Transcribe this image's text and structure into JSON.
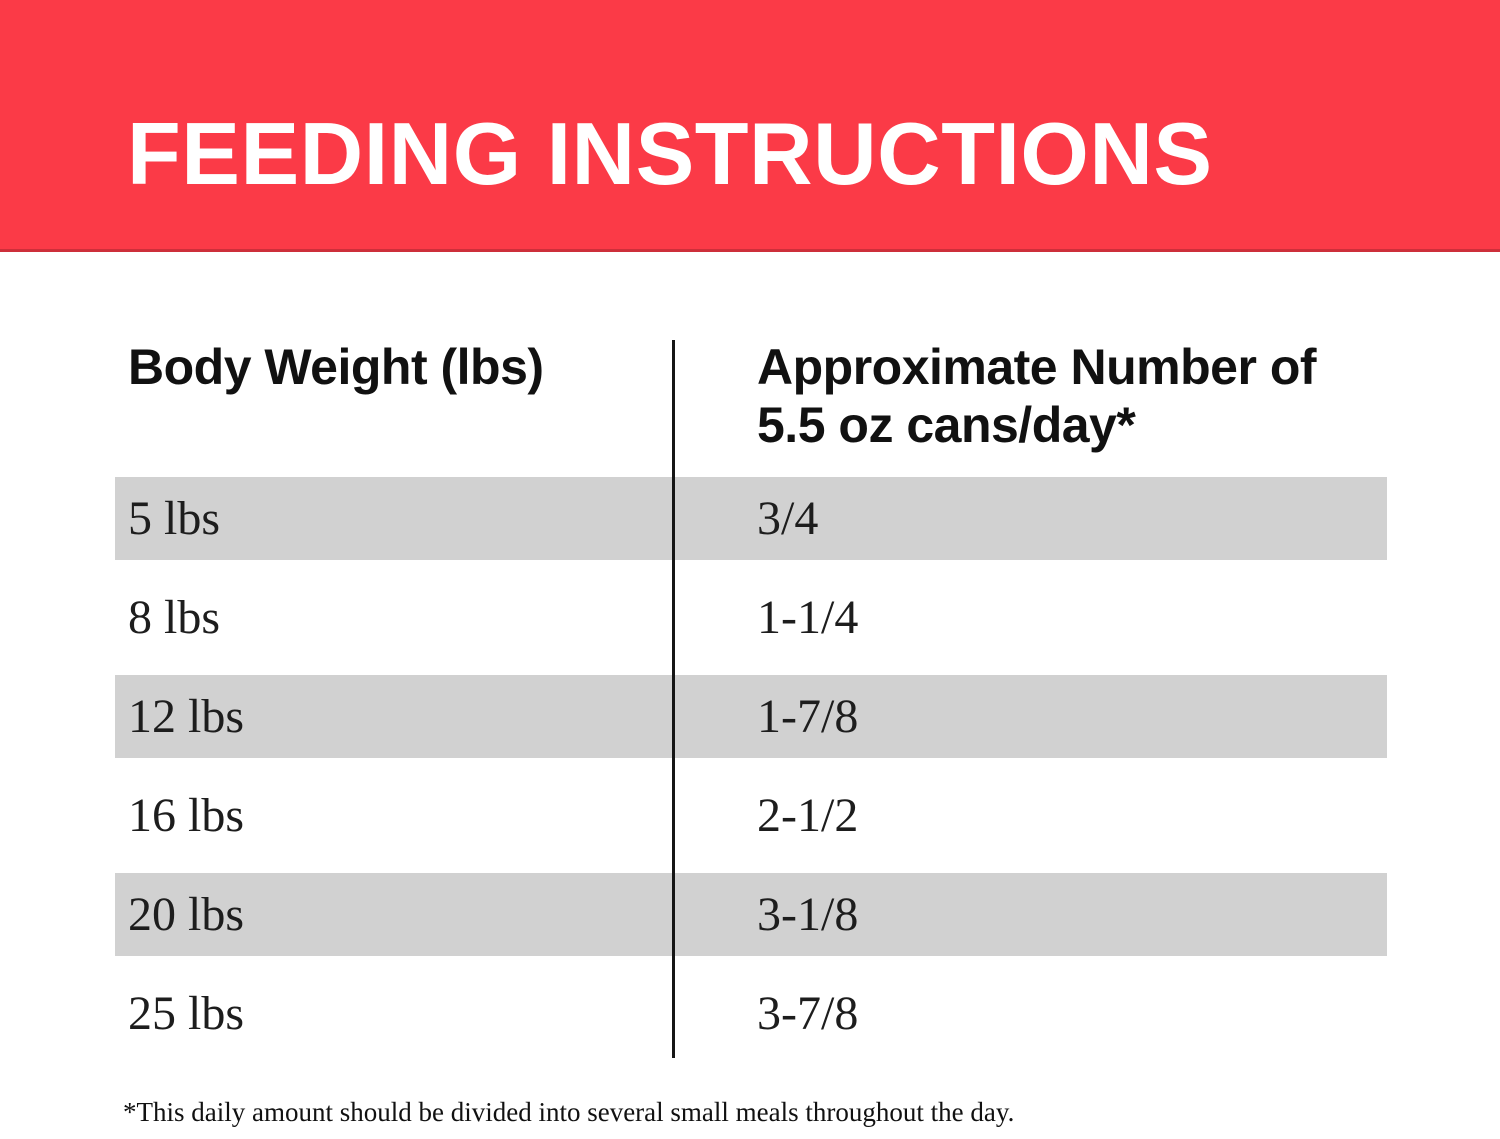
{
  "banner": {
    "title": "FEEDING INSTRUCTIONS",
    "background_color": "#FB3A47",
    "text_color": "#FFFFFF"
  },
  "table": {
    "header": {
      "col1": "Body Weight (lbs)",
      "col2": "Approximate Number of 5.5 oz cans/day*"
    },
    "rows": [
      {
        "weight": "5 lbs",
        "cans": "3/4"
      },
      {
        "weight": "8 lbs",
        "cans": "1-1/4"
      },
      {
        "weight": "12 lbs",
        "cans": "1-7/8"
      },
      {
        "weight": "16 lbs",
        "cans": "2-1/2"
      },
      {
        "weight": "20 lbs",
        "cans": "3-1/8"
      },
      {
        "weight": "25 lbs",
        "cans": "3-7/8"
      }
    ],
    "stripe_color": "#D1D1D1"
  },
  "footnote": "*This daily amount should be divided into several small meals throughout the day."
}
